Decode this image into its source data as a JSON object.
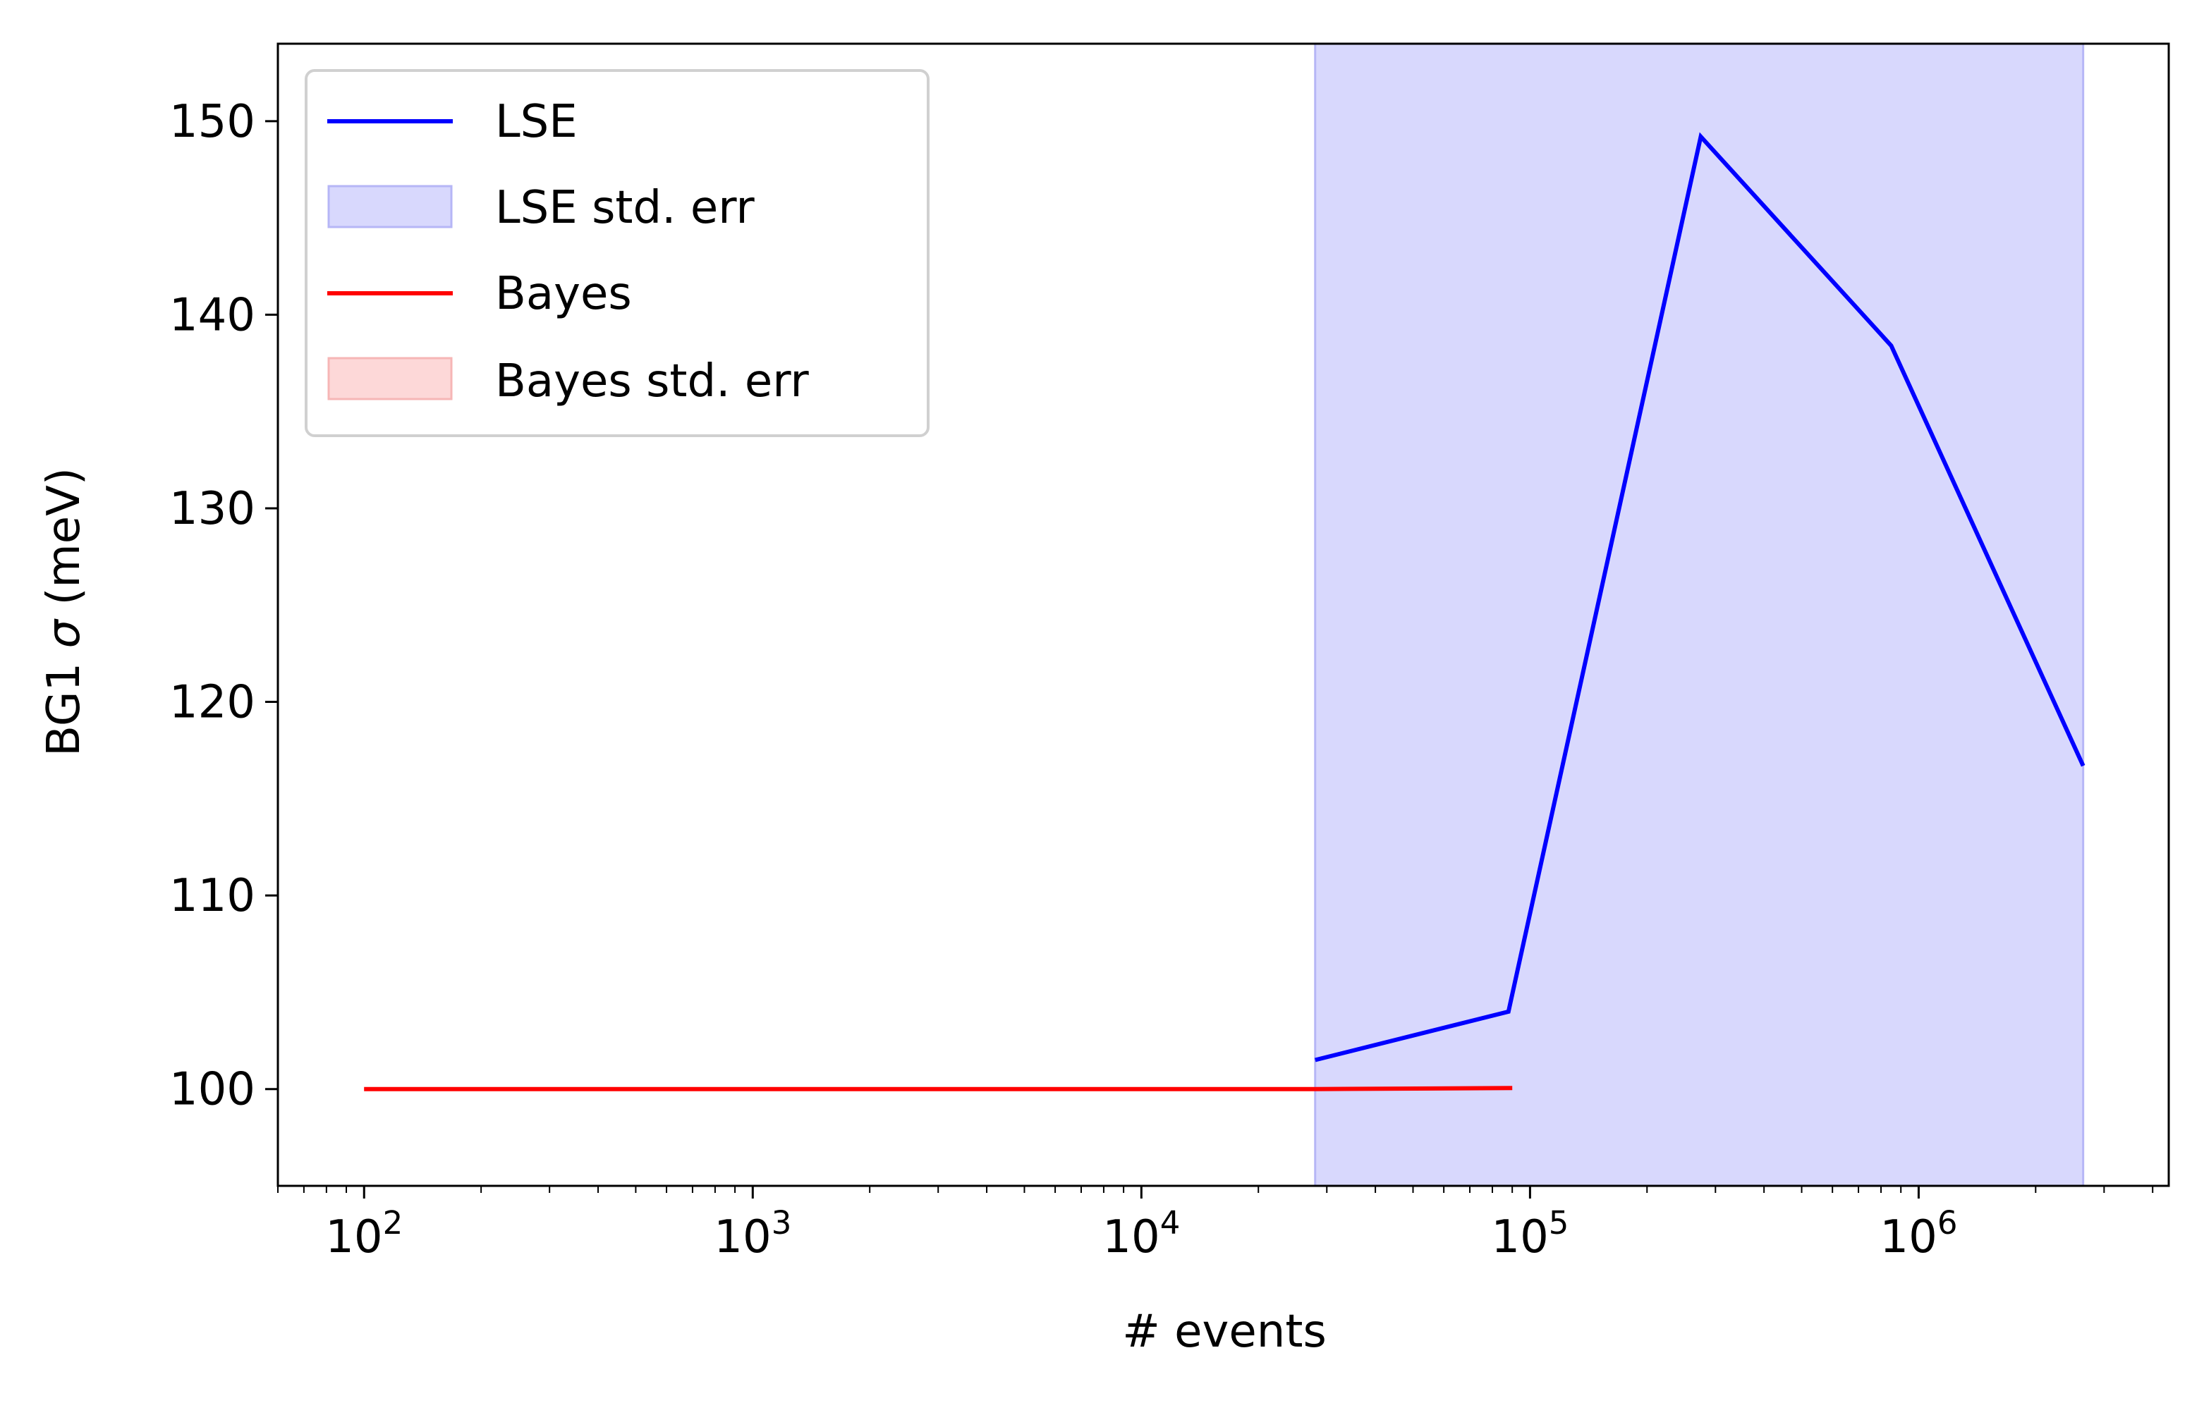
{
  "chart_data": {
    "type": "line",
    "xlabel": "# events",
    "ylabel_prefix": "BG1 ",
    "ylabel_symbol": "σ",
    "ylabel_suffix": " (meV)",
    "xscale": "log",
    "xlim": [
      60,
      4400000
    ],
    "ylim": [
      95,
      154
    ],
    "x_ticks": [
      {
        "value": 100,
        "base": "10",
        "exp": "2"
      },
      {
        "value": 1000,
        "base": "10",
        "exp": "3"
      },
      {
        "value": 10000,
        "base": "10",
        "exp": "4"
      },
      {
        "value": 100000,
        "base": "10",
        "exp": "5"
      },
      {
        "value": 1000000,
        "base": "10",
        "exp": "6"
      }
    ],
    "y_ticks": [
      100,
      110,
      120,
      130,
      140,
      150
    ],
    "series": [
      {
        "name": "LSE",
        "color": "#0000ff",
        "x": [
          28000,
          88000,
          275000,
          850000,
          2650000
        ],
        "y": [
          101.5,
          104.0,
          149.2,
          138.4,
          116.7
        ]
      },
      {
        "name": "Bayes",
        "color": "#ff0000",
        "x": [
          100,
          300,
          1000,
          3000,
          10000,
          28000,
          90000
        ],
        "y": [
          100.0,
          100.0,
          100.0,
          100.0,
          100.0,
          100.0,
          100.05
        ]
      }
    ],
    "bands": [
      {
        "name": "LSE std. err",
        "fill": "#d8d8fd",
        "edge": "#b6b6f6",
        "x_range": [
          28000,
          2650000
        ],
        "span": "full"
      },
      {
        "name": "Bayes std. err",
        "fill": "#fdd8d8",
        "edge": "#f6b6b6"
      }
    ],
    "legend": {
      "position": "top-left",
      "items": [
        {
          "label": "LSE",
          "kind": "line",
          "color": "#0000ff"
        },
        {
          "label": "LSE std. err",
          "kind": "patch",
          "fill": "#d8d8fd",
          "edge": "#b6b6f6"
        },
        {
          "label": "Bayes",
          "kind": "line",
          "color": "#ff0000"
        },
        {
          "label": "Bayes std. err",
          "kind": "patch",
          "fill": "#fdd8d8",
          "edge": "#f6b6b6"
        }
      ]
    },
    "grid": false
  }
}
